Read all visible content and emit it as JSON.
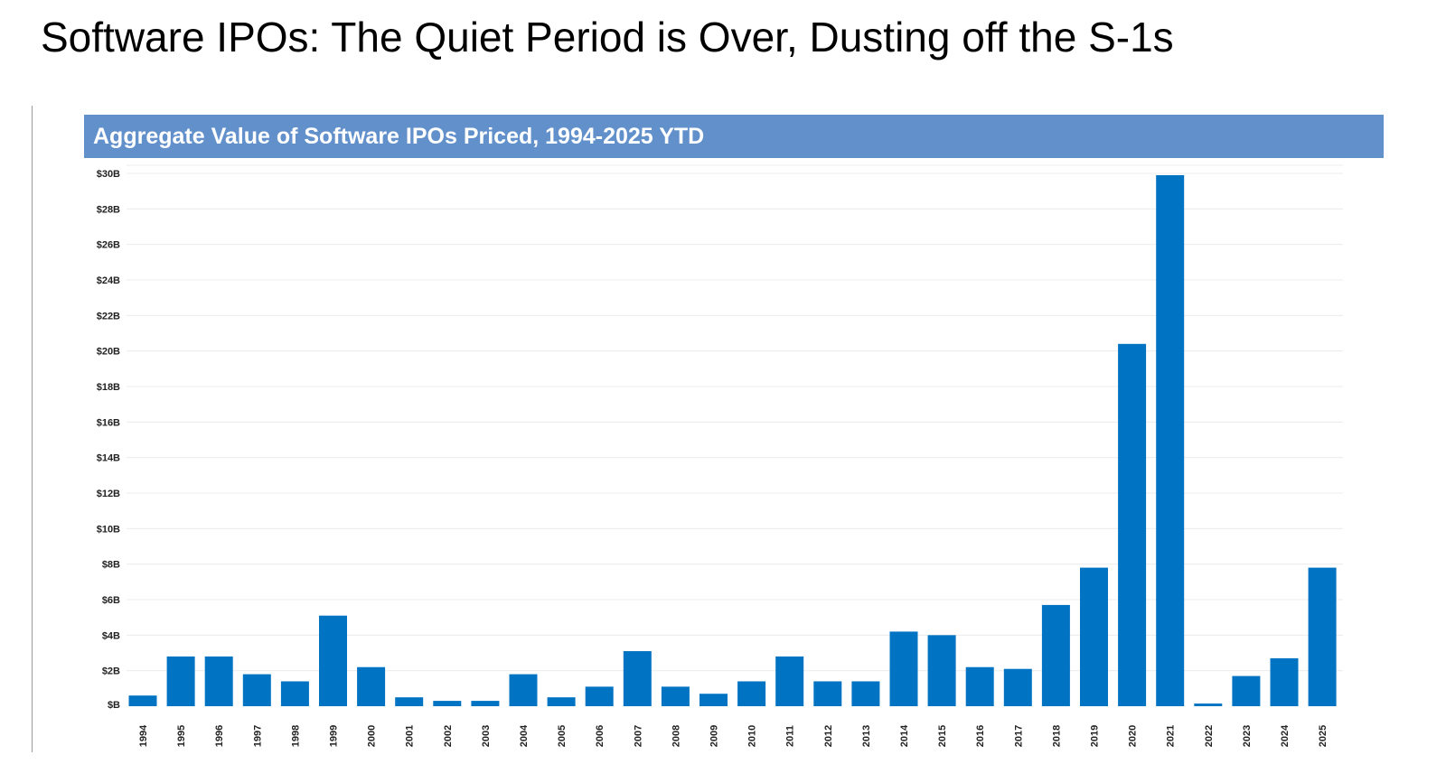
{
  "page": {
    "title": "Software IPOs: The Quiet Period is Over, Dusting off the S-1s"
  },
  "chart_data": {
    "type": "bar",
    "title": "Aggregate Value of Software IPOs Priced, 1994-2025 YTD",
    "xlabel": "",
    "ylabel": "",
    "ylim": [
      0,
      30
    ],
    "unit": "$B",
    "grid": true,
    "legend": "none",
    "bar_color": "#0073c3",
    "header_color": "#6190cb",
    "yticks": [
      {
        "value": 0,
        "label": "$B"
      },
      {
        "value": 2,
        "label": "$2B"
      },
      {
        "value": 4,
        "label": "$4B"
      },
      {
        "value": 6,
        "label": "$6B"
      },
      {
        "value": 8,
        "label": "$8B"
      },
      {
        "value": 10,
        "label": "$10B"
      },
      {
        "value": 12,
        "label": "$12B"
      },
      {
        "value": 14,
        "label": "$14B"
      },
      {
        "value": 16,
        "label": "$16B"
      },
      {
        "value": 18,
        "label": "$18B"
      },
      {
        "value": 20,
        "label": "$20B"
      },
      {
        "value": 22,
        "label": "$22B"
      },
      {
        "value": 24,
        "label": "$24B"
      },
      {
        "value": 26,
        "label": "$26B"
      },
      {
        "value": 28,
        "label": "$28B"
      },
      {
        "value": 30,
        "label": "$30B"
      }
    ],
    "categories": [
      "1994",
      "1995",
      "1996",
      "1997",
      "1998",
      "1999",
      "2000",
      "2001",
      "2002",
      "2003",
      "2004",
      "2005",
      "2006",
      "2007",
      "2008",
      "2009",
      "2010",
      "2011",
      "2012",
      "2013",
      "2014",
      "2015",
      "2016",
      "2017",
      "2018",
      "2019",
      "2020",
      "2021",
      "2022",
      "2023",
      "2024",
      "2025"
    ],
    "values": [
      0.6,
      2.8,
      2.8,
      1.8,
      1.4,
      5.1,
      2.2,
      0.5,
      0.3,
      0.3,
      1.8,
      0.5,
      1.1,
      3.1,
      1.1,
      0.7,
      1.4,
      2.8,
      1.4,
      1.4,
      4.2,
      4.0,
      2.2,
      2.1,
      5.7,
      7.8,
      20.4,
      29.9,
      0.15,
      1.7,
      2.7,
      7.8
    ]
  }
}
